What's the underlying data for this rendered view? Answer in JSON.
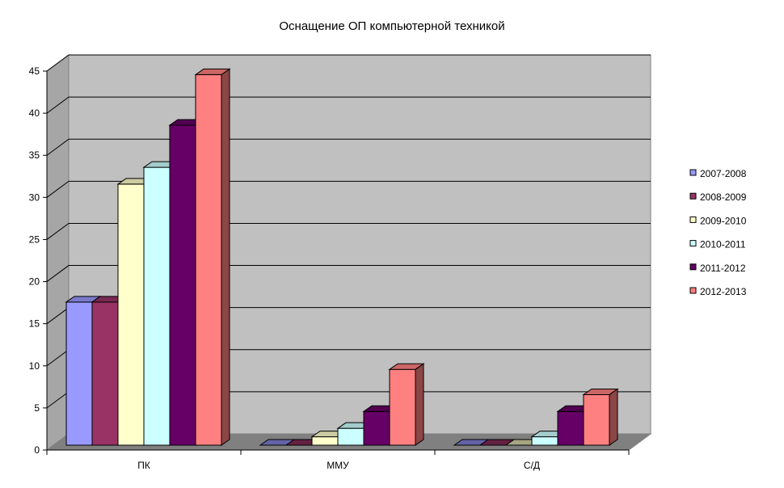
{
  "chart_data": {
    "type": "bar",
    "title": "Оснащение ОП компьютерной техникой",
    "categories": [
      "ПК",
      "ММУ",
      "С/Д"
    ],
    "series": [
      {
        "name": "2007-2008",
        "color": "#9999ff",
        "values": [
          17,
          0,
          0
        ]
      },
      {
        "name": "2008-2009",
        "color": "#993366",
        "values": [
          17,
          0,
          0
        ]
      },
      {
        "name": "2009-2010",
        "color": "#ffffcc",
        "values": [
          31,
          1,
          0
        ]
      },
      {
        "name": "2010-2011",
        "color": "#ccffff",
        "values": [
          33,
          2,
          1
        ]
      },
      {
        "name": "2011-2012",
        "color": "#660066",
        "values": [
          38,
          4,
          4
        ]
      },
      {
        "name": "2012-2013",
        "color": "#ff8080",
        "values": [
          44,
          9,
          6
        ]
      }
    ],
    "yticks": [
      "0",
      "5",
      "10",
      "15",
      "20",
      "25",
      "30",
      "35",
      "40",
      "45"
    ],
    "ylim": [
      0,
      45
    ],
    "grid": true,
    "legend": "right",
    "plot_background": "#c0c0c0"
  }
}
